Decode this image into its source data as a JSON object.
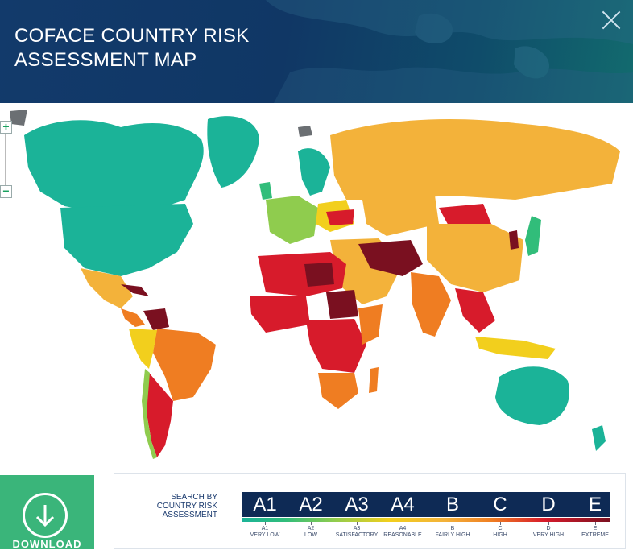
{
  "header": {
    "title_line1": "COFACE COUNTRY RISK",
    "title_line2": "ASSESSMENT MAP"
  },
  "icons": {
    "close": "close-icon",
    "zoom_in": "plus-icon",
    "zoom_out": "minus-icon",
    "download": "download-arrow-icon"
  },
  "zoom": {
    "in_label": "+",
    "out_label": "−"
  },
  "download": {
    "label": "DOWNLOAD"
  },
  "legend": {
    "search_line1": "SEARCH BY",
    "search_line2": "COUNTRY RISK",
    "search_line3": "ASSESSMENT",
    "grades": [
      {
        "code": "A1",
        "tick_code": "A1",
        "desc": "VERY LOW",
        "color": "#1bb398"
      },
      {
        "code": "A2",
        "tick_code": "A2",
        "desc": "LOW",
        "color": "#31bd7a"
      },
      {
        "code": "A3",
        "tick_code": "A3",
        "desc": "SATISFACTORY",
        "color": "#8fcc4e"
      },
      {
        "code": "A4",
        "tick_code": "A4",
        "desc": "REASONABLE",
        "color": "#f2cf1d"
      },
      {
        "code": "B",
        "tick_code": "B",
        "desc": "FAIRLY HIGH",
        "color": "#f3b23a"
      },
      {
        "code": "C",
        "tick_code": "C",
        "desc": "HIGH",
        "color": "#ef7d22"
      },
      {
        "code": "D",
        "tick_code": "D",
        "desc": "VERY HIGH",
        "color": "#d71b2b"
      },
      {
        "code": "E",
        "tick_code": "E",
        "desc": "EXTREME",
        "color": "#7a1020"
      }
    ]
  },
  "colors": {
    "header": "#123a6b",
    "download": "#3ab57a",
    "legend_bar": "#0e2a55",
    "no_data": "#6b6f73"
  }
}
